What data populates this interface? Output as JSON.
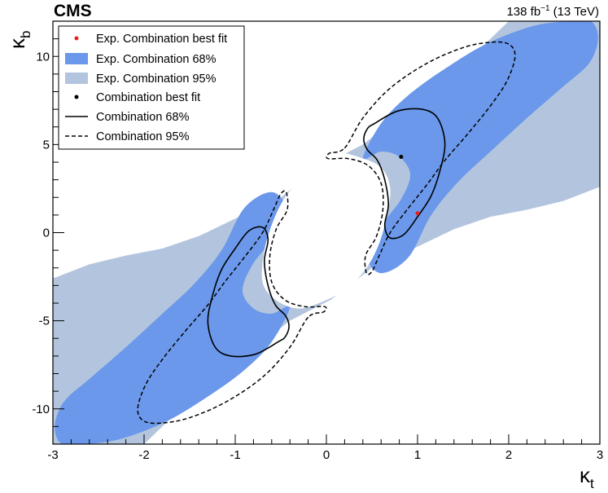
{
  "header": {
    "experiment": "CMS",
    "luminosity": "138 fb",
    "luminosity_exp": "−1",
    "energy": "(13 TeV)"
  },
  "chart_data": {
    "type": "contour",
    "xlabel": "κ",
    "xlabel_sub": "t",
    "ylabel": "κ",
    "ylabel_sub": "b",
    "xlim": [
      -3,
      3
    ],
    "ylim": [
      -12,
      12
    ],
    "xticks": [
      -3,
      -2,
      -1,
      0,
      1,
      2,
      3
    ],
    "yticks": [
      -10,
      -5,
      0,
      5,
      10
    ],
    "grid": false,
    "legend_position": "top-left",
    "colors": {
      "exp68": "#6b98ea",
      "exp95": "#b3c5de",
      "obs_best_fit": "#000000",
      "exp_best_fit": "#e8211f"
    },
    "legend": [
      {
        "label": "Exp. Combination best fit",
        "style": "red-marker"
      },
      {
        "label": "Exp. Combination 68%",
        "style": "dark-blue-fill"
      },
      {
        "label": "Exp. Combination 95%",
        "style": "light-blue-fill"
      },
      {
        "label": "Combination best fit",
        "style": "black-marker"
      },
      {
        "label": "Combination 68%",
        "style": "solid-line"
      },
      {
        "label": "Combination 95%",
        "style": "dashed-line"
      }
    ],
    "best_fits": {
      "expected": {
        "x": 1.0,
        "y": 1.1
      },
      "observed": {
        "x": 0.82,
        "y": 4.3
      }
    },
    "regions": {
      "exp95": [
        [
          [
            -3.0,
            -2.6
          ],
          [
            -2.6,
            -1.8
          ],
          [
            -2.2,
            -1.3
          ],
          [
            -1.8,
            -0.9
          ],
          [
            -1.4,
            -0.2
          ],
          [
            -1.0,
            0.8
          ],
          [
            -0.5,
            2.0
          ],
          [
            -0.05,
            3.8
          ],
          [
            0.4,
            5.0
          ],
          [
            0.8,
            6.6
          ],
          [
            1.2,
            8.2
          ],
          [
            1.6,
            10.0
          ],
          [
            1.9,
            11.5
          ],
          [
            2.0,
            12.0
          ],
          [
            3.0,
            12.0
          ],
          [
            3.0,
            2.6
          ],
          [
            2.6,
            1.8
          ],
          [
            2.2,
            1.3
          ],
          [
            1.8,
            0.9
          ],
          [
            1.4,
            0.2
          ],
          [
            1.0,
            -0.8
          ],
          [
            0.5,
            -2.0
          ],
          [
            0.05,
            -3.8
          ],
          [
            -0.4,
            -5.0
          ],
          [
            -0.8,
            -6.6
          ],
          [
            -1.2,
            -8.2
          ],
          [
            -1.6,
            -10.0
          ],
          [
            -1.9,
            -11.5
          ],
          [
            -2.0,
            -12.0
          ],
          [
            -3.0,
            -12.0
          ]
        ]
      ],
      "exp68": [
        [
          [
            0.4,
            4.2
          ],
          [
            0.6,
            6.2
          ],
          [
            0.9,
            7.8
          ],
          [
            1.3,
            9.3
          ],
          [
            1.75,
            10.7
          ],
          [
            2.25,
            11.7
          ],
          [
            2.65,
            12.0
          ],
          [
            2.9,
            12.0
          ],
          [
            2.98,
            11.0
          ],
          [
            2.88,
            9.6
          ],
          [
            2.6,
            8.3
          ],
          [
            2.2,
            6.5
          ],
          [
            1.8,
            4.6
          ],
          [
            1.45,
            2.9
          ],
          [
            1.15,
            1.0
          ],
          [
            0.9,
            -1.4
          ],
          [
            0.6,
            -2.3
          ],
          [
            0.45,
            -1.3
          ],
          [
            0.62,
            0.5
          ],
          [
            0.82,
            1.9
          ],
          [
            0.92,
            3.3
          ],
          [
            0.8,
            4.3
          ],
          [
            0.6,
            4.6
          ]
        ],
        [
          [
            -0.4,
            -4.2
          ],
          [
            -0.6,
            -6.2
          ],
          [
            -0.9,
            -7.8
          ],
          [
            -1.3,
            -9.3
          ],
          [
            -1.75,
            -10.7
          ],
          [
            -2.25,
            -11.7
          ],
          [
            -2.65,
            -12.0
          ],
          [
            -2.9,
            -12.0
          ],
          [
            -2.98,
            -11.0
          ],
          [
            -2.88,
            -9.6
          ],
          [
            -2.6,
            -8.3
          ],
          [
            -2.2,
            -6.5
          ],
          [
            -1.8,
            -4.6
          ],
          [
            -1.45,
            -2.9
          ],
          [
            -1.15,
            -1.0
          ],
          [
            -0.9,
            1.4
          ],
          [
            -0.6,
            2.3
          ],
          [
            -0.45,
            1.3
          ],
          [
            -0.62,
            -0.5
          ],
          [
            -0.82,
            -1.9
          ],
          [
            -0.92,
            -3.3
          ],
          [
            -0.8,
            -4.3
          ],
          [
            -0.6,
            -4.6
          ]
        ]
      ],
      "excluded_white": [
        [
          [
            0.08,
            4.6
          ],
          [
            0.35,
            4.3
          ],
          [
            0.6,
            3.7
          ],
          [
            0.7,
            2.5
          ],
          [
            0.66,
            0.9
          ],
          [
            0.58,
            -0.6
          ],
          [
            0.44,
            -2.0
          ],
          [
            0.22,
            -3.2
          ],
          [
            -0.08,
            -4.0
          ],
          [
            -0.32,
            -4.3
          ],
          [
            -0.56,
            -3.8
          ],
          [
            -0.7,
            -2.8
          ],
          [
            -0.68,
            -1.0
          ],
          [
            -0.58,
            0.7
          ],
          [
            -0.44,
            2.1
          ],
          [
            -0.22,
            3.3
          ],
          [
            -0.02,
            4.3
          ]
        ]
      ]
    },
    "contours": {
      "obs68": [
        [
          [
            0.53,
            6.2
          ],
          [
            0.78,
            6.9
          ],
          [
            1.05,
            7.0
          ],
          [
            1.22,
            6.5
          ],
          [
            1.3,
            5.1
          ],
          [
            1.25,
            3.6
          ],
          [
            1.15,
            2.1
          ],
          [
            1.0,
            0.9
          ],
          [
            0.85,
            -0.1
          ],
          [
            0.7,
            -0.3
          ],
          [
            0.64,
            0.4
          ],
          [
            0.68,
            1.6
          ],
          [
            0.64,
            3.0
          ],
          [
            0.56,
            4.1
          ],
          [
            0.45,
            4.7
          ],
          [
            0.41,
            5.3
          ],
          [
            0.45,
            5.9
          ]
        ],
        [
          [
            -0.53,
            -6.2
          ],
          [
            -0.78,
            -6.9
          ],
          [
            -1.05,
            -7.0
          ],
          [
            -1.22,
            -6.5
          ],
          [
            -1.3,
            -5.1
          ],
          [
            -1.25,
            -3.6
          ],
          [
            -1.15,
            -2.1
          ],
          [
            -1.0,
            -0.9
          ],
          [
            -0.85,
            0.1
          ],
          [
            -0.7,
            0.3
          ],
          [
            -0.64,
            -0.4
          ],
          [
            -0.68,
            -1.6
          ],
          [
            -0.64,
            -3.0
          ],
          [
            -0.56,
            -4.1
          ],
          [
            -0.45,
            -4.7
          ],
          [
            -0.41,
            -5.3
          ],
          [
            -0.45,
            -5.9
          ]
        ]
      ],
      "obs95": [
        [
          [
            0.2,
            4.8
          ],
          [
            0.4,
            6.5
          ],
          [
            0.7,
            8.2
          ],
          [
            1.1,
            9.6
          ],
          [
            1.5,
            10.5
          ],
          [
            1.8,
            10.8
          ],
          [
            2.0,
            10.7
          ],
          [
            2.07,
            10.0
          ],
          [
            1.98,
            8.6
          ],
          [
            1.8,
            7.2
          ],
          [
            1.55,
            5.6
          ],
          [
            1.3,
            4.1
          ],
          [
            1.1,
            2.7
          ],
          [
            0.9,
            1.4
          ],
          [
            0.7,
            0.0
          ],
          [
            0.58,
            -1.3
          ],
          [
            0.5,
            -2.2
          ],
          [
            0.44,
            -2.3
          ],
          [
            0.43,
            -1.3
          ],
          [
            0.55,
            -0.2
          ],
          [
            0.62,
            1.3
          ],
          [
            0.6,
            2.8
          ],
          [
            0.46,
            3.8
          ],
          [
            0.24,
            4.2
          ],
          [
            0.02,
            4.2
          ],
          [
            0.03,
            4.5
          ]
        ],
        [
          [
            -0.2,
            -4.8
          ],
          [
            -0.4,
            -6.5
          ],
          [
            -0.7,
            -8.2
          ],
          [
            -1.1,
            -9.6
          ],
          [
            -1.5,
            -10.5
          ],
          [
            -1.8,
            -10.8
          ],
          [
            -2.0,
            -10.7
          ],
          [
            -2.07,
            -10.0
          ],
          [
            -1.98,
            -8.6
          ],
          [
            -1.8,
            -7.2
          ],
          [
            -1.55,
            -5.6
          ],
          [
            -1.3,
            -4.1
          ],
          [
            -1.1,
            -2.7
          ],
          [
            -0.9,
            -1.4
          ],
          [
            -0.7,
            0.0
          ],
          [
            -0.58,
            1.3
          ],
          [
            -0.5,
            2.2
          ],
          [
            -0.44,
            2.3
          ],
          [
            -0.43,
            1.3
          ],
          [
            -0.55,
            0.2
          ],
          [
            -0.62,
            -1.3
          ],
          [
            -0.6,
            -2.8
          ],
          [
            -0.46,
            -3.8
          ],
          [
            -0.24,
            -4.2
          ],
          [
            -0.02,
            -4.2
          ],
          [
            -0.03,
            -4.5
          ]
        ]
      ]
    }
  }
}
